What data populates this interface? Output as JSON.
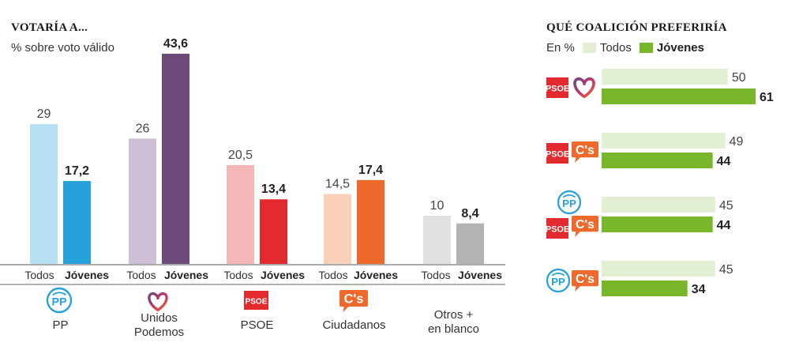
{
  "left": {
    "title": "VOTARÍA A...",
    "subtitle": "% sobre voto válido",
    "chart_data": {
      "type": "bar",
      "categories": [
        "PP",
        "Unidos Podemos",
        "PSOE",
        "Ciudadanos",
        "Otros + en blanco"
      ],
      "category_lines": [
        [
          "PP"
        ],
        [
          "Unidos",
          "Podemos"
        ],
        [
          "PSOE"
        ],
        [
          "Ciudadanos"
        ],
        [
          "Otros +",
          "en blanco"
        ]
      ],
      "series": [
        {
          "name": "Todos",
          "values": [
            29,
            26,
            20.5,
            14.5,
            10
          ],
          "labels": [
            "29",
            "26",
            "20,5",
            "14,5",
            "10"
          ]
        },
        {
          "name": "Jóvenes",
          "values": [
            17.2,
            43.6,
            13.4,
            17.4,
            8.4
          ],
          "labels": [
            "17,2",
            "43,6",
            "13,4",
            "17,4",
            "8,4"
          ]
        }
      ],
      "colors": {
        "Todos": [
          "#b7dff2",
          "#cdbfd6",
          "#f4b6b6",
          "#f9cfb8",
          "#e1e1e1"
        ],
        "Jóvenes": [
          "#25a1db",
          "#6e4a7a",
          "#e32a2e",
          "#ed6a2c",
          "#b3b3b3"
        ]
      },
      "ylim": [
        0,
        45
      ],
      "party_icons": [
        "pp-logo-icon",
        "unidos-podemos-heart-icon",
        "psoe-logo-icon",
        "ciudadanos-logo-icon",
        null
      ]
    }
  },
  "right": {
    "title": "QUÉ COALICIÓN PREFERIRÍA",
    "legend": {
      "unit": "En %",
      "todos": "Todos",
      "jovenes": "Jóvenes"
    },
    "chart_data": {
      "type": "bar",
      "orientation": "horizontal",
      "categories": [
        "PSOE + Unidos Podemos",
        "PSOE + Ciudadanos",
        "PP + PSOE + Ciudadanos",
        "PP + Ciudadanos"
      ],
      "category_icons": [
        [
          "psoe-logo-icon",
          "unidos-podemos-heart-icon"
        ],
        [
          "psoe-logo-icon",
          "ciudadanos-logo-icon"
        ],
        [
          "pp-logo-icon",
          "psoe-logo-icon",
          "ciudadanos-logo-icon"
        ],
        [
          "pp-logo-icon",
          "ciudadanos-logo-icon"
        ]
      ],
      "series": [
        {
          "name": "Todos",
          "values": [
            50,
            49,
            45,
            45
          ]
        },
        {
          "name": "Jóvenes",
          "values": [
            61,
            44,
            44,
            34
          ]
        }
      ],
      "colors": {
        "Todos": "#e3efd3",
        "Jóvenes": "#78b62a"
      },
      "xlim": [
        0,
        61
      ]
    }
  },
  "logos": {
    "psoe": "PSOE",
    "pp": "PP",
    "cs": "C's"
  }
}
